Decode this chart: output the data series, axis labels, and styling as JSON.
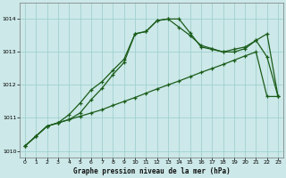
{
  "title": "Graphe pression niveau de la mer (hPa)",
  "background_color": "#cce8e8",
  "grid_color": "#99cccc",
  "line_color": "#1a5c1a",
  "xlim": [
    -0.5,
    23.5
  ],
  "ylim": [
    1009.8,
    1014.5
  ],
  "yticks": [
    1010,
    1011,
    1012,
    1013,
    1014
  ],
  "xticks": [
    0,
    1,
    2,
    3,
    4,
    5,
    6,
    7,
    8,
    9,
    10,
    11,
    12,
    13,
    14,
    15,
    16,
    17,
    18,
    19,
    20,
    21,
    22,
    23
  ],
  "line1_x": [
    0,
    1,
    2,
    3,
    4,
    5,
    6,
    7,
    8,
    9,
    10,
    11,
    12,
    13,
    14,
    15,
    16,
    17,
    18,
    19,
    20,
    21,
    22,
    23
  ],
  "line1_y": [
    1010.15,
    1010.45,
    1010.75,
    1010.85,
    1010.95,
    1011.05,
    1011.15,
    1011.25,
    1011.38,
    1011.5,
    1011.62,
    1011.75,
    1011.88,
    1012.0,
    1012.12,
    1012.25,
    1012.38,
    1012.5,
    1012.62,
    1012.75,
    1012.88,
    1013.0,
    1011.65,
    1011.65
  ],
  "line2_x": [
    0,
    1,
    2,
    3,
    4,
    5,
    6,
    7,
    8,
    9,
    10,
    11,
    12,
    13,
    14,
    15,
    16,
    17,
    18,
    19,
    20,
    21,
    22,
    23
  ],
  "line2_y": [
    1010.15,
    1010.45,
    1010.75,
    1010.85,
    1011.1,
    1011.45,
    1011.85,
    1012.1,
    1012.45,
    1012.78,
    1013.55,
    1013.62,
    1013.95,
    1014.0,
    1013.75,
    1013.5,
    1013.2,
    1013.1,
    1013.0,
    1013.0,
    1013.1,
    1013.35,
    1012.85,
    1011.65
  ],
  "line3_x": [
    0,
    1,
    2,
    3,
    4,
    5,
    6,
    7,
    8,
    9,
    10,
    11,
    12,
    13,
    14,
    15,
    16,
    17,
    18,
    19,
    20,
    21,
    22,
    23
  ],
  "line3_y": [
    1010.15,
    1010.45,
    1010.75,
    1010.85,
    1010.95,
    1011.15,
    1011.55,
    1011.9,
    1012.32,
    1012.68,
    1013.55,
    1013.62,
    1013.95,
    1014.0,
    1014.0,
    1013.58,
    1013.15,
    1013.08,
    1013.0,
    1013.08,
    1013.15,
    1013.35,
    1013.55,
    1011.65
  ]
}
